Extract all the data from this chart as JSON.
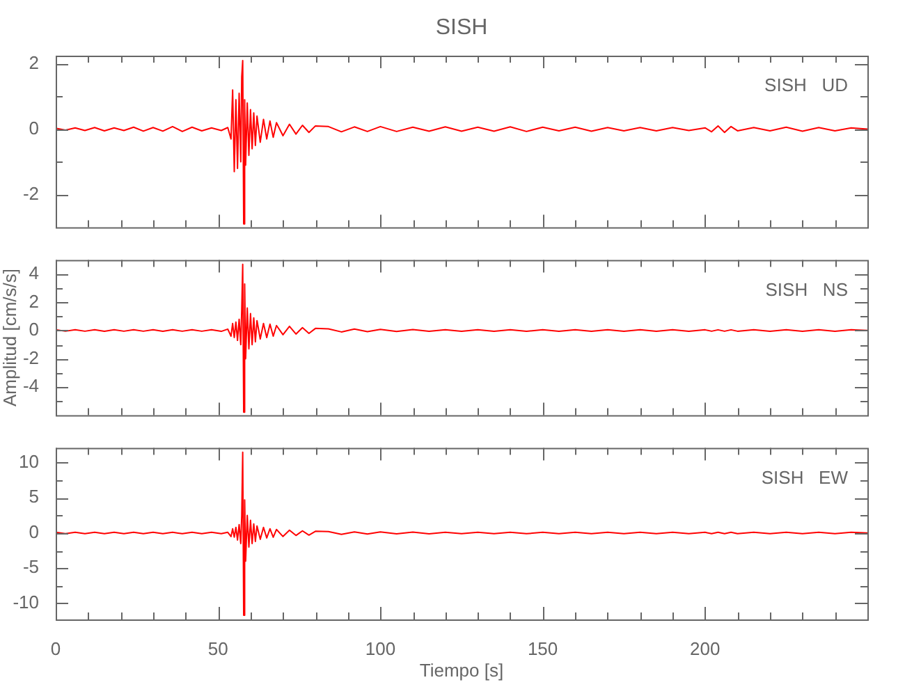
{
  "chart_data": [
    {
      "type": "line",
      "title": "SISH",
      "annotations": [
        "SISH   UD"
      ],
      "color": "#ff0000",
      "tick_labels": "y",
      "x": [
        0,
        3,
        6,
        9,
        12,
        15,
        18,
        21,
        24,
        27,
        30,
        33,
        36,
        39,
        42,
        45,
        48,
        51,
        53,
        54,
        54.5,
        55,
        55.5,
        56,
        56.5,
        57,
        57.3,
        57.6,
        57.9,
        58.2,
        58.5,
        59,
        59.5,
        60,
        60.5,
        61,
        61.5,
        62,
        63,
        64,
        65,
        66,
        67,
        68,
        70,
        72,
        74,
        76,
        78,
        80,
        84,
        88,
        92,
        96,
        100,
        105,
        110,
        115,
        120,
        125,
        130,
        135,
        140,
        145,
        150,
        155,
        160,
        165,
        170,
        175,
        180,
        185,
        190,
        195,
        200,
        202,
        204,
        206,
        208,
        210,
        215,
        220,
        225,
        230,
        235,
        240,
        245,
        250
      ],
      "values": [
        0.03,
        -0.03,
        0.04,
        -0.04,
        0.05,
        -0.05,
        0.04,
        -0.04,
        0.06,
        -0.06,
        0.05,
        -0.06,
        0.08,
        -0.07,
        0.06,
        -0.05,
        0.04,
        -0.04,
        0.05,
        -0.3,
        1.2,
        -1.3,
        0.9,
        -1.2,
        1.1,
        -1.0,
        1.6,
        2.1,
        -2.9,
        0.9,
        -1.1,
        0.8,
        -0.8,
        0.6,
        -0.6,
        0.5,
        -0.5,
        0.4,
        -0.4,
        0.3,
        -0.3,
        0.25,
        -0.25,
        0.2,
        -0.2,
        0.15,
        -0.15,
        0.12,
        -0.1,
        0.1,
        0.08,
        -0.08,
        0.07,
        -0.07,
        0.08,
        -0.07,
        0.06,
        -0.06,
        0.07,
        -0.06,
        0.06,
        -0.06,
        0.07,
        -0.07,
        0.06,
        -0.05,
        0.06,
        -0.06,
        0.05,
        -0.05,
        0.05,
        -0.05,
        0.05,
        -0.04,
        0.04,
        -0.08,
        0.1,
        -0.1,
        0.08,
        -0.05,
        0.05,
        -0.05,
        0.06,
        -0.06,
        0.05,
        -0.05,
        0.04,
        0
      ],
      "xlim": [
        0,
        250
      ],
      "xticks": [
        0,
        {
          "value": 10,
          "label": null
        },
        {
          "value": 20,
          "label": null
        },
        {
          "value": 30,
          "label": null
        },
        {
          "value": 40,
          "label": null
        },
        50,
        {
          "value": 60,
          "label": null
        },
        {
          "value": 70,
          "label": null
        },
        {
          "value": 80,
          "label": null
        },
        {
          "value": 90,
          "label": null
        },
        100,
        {
          "value": 110,
          "label": null
        },
        {
          "value": 120,
          "label": null
        },
        {
          "value": 130,
          "label": null
        },
        {
          "value": 140,
          "label": null
        },
        150,
        {
          "value": 160,
          "label": null
        },
        {
          "value": 170,
          "label": null
        },
        {
          "value": 180,
          "label": null
        },
        {
          "value": 190,
          "label": null
        },
        200,
        {
          "value": 210,
          "label": null
        },
        {
          "value": 220,
          "label": null
        },
        {
          "value": 230,
          "label": null
        },
        {
          "value": 240,
          "label": null
        }
      ],
      "ylim": [
        -3,
        2.25
      ],
      "yticks": [
        2,
        {
          "value": 1,
          "label": null
        },
        0,
        {
          "value": -1,
          "label": null
        },
        -2
      ]
    },
    {
      "type": "line",
      "ylabel": "Amplitud [cm/s/s]",
      "annotations": [
        "SISH   NS"
      ],
      "color": "#ff0000",
      "tick_labels": "y",
      "x": [
        0,
        3,
        6,
        9,
        12,
        15,
        18,
        21,
        24,
        27,
        30,
        33,
        36,
        39,
        42,
        45,
        48,
        51,
        53,
        54,
        54.5,
        55,
        55.5,
        56,
        56.5,
        57,
        57.3,
        57.6,
        57.9,
        58.2,
        58.5,
        59,
        59.5,
        60,
        60.5,
        61,
        61.5,
        62,
        63,
        64,
        65,
        66,
        67,
        68,
        70,
        72,
        74,
        76,
        78,
        80,
        84,
        88,
        92,
        96,
        100,
        105,
        110,
        115,
        120,
        125,
        130,
        135,
        140,
        145,
        150,
        155,
        160,
        165,
        170,
        175,
        180,
        185,
        190,
        195,
        200,
        202,
        204,
        206,
        208,
        210,
        215,
        220,
        225,
        230,
        235,
        240,
        245,
        250
      ],
      "values": [
        0.05,
        -0.05,
        0.06,
        -0.05,
        0.05,
        -0.06,
        0.05,
        -0.05,
        0.06,
        -0.05,
        0.05,
        -0.06,
        0.05,
        -0.05,
        0.06,
        -0.05,
        0.05,
        -0.06,
        0.1,
        -0.4,
        0.5,
        -0.5,
        0.6,
        -0.7,
        0.8,
        -1.0,
        1.5,
        4.7,
        -5.8,
        3.3,
        -2.0,
        1.6,
        -1.3,
        1.2,
        -1.0,
        0.9,
        -0.8,
        0.7,
        -0.6,
        0.5,
        -0.5,
        0.45,
        -0.4,
        0.35,
        -0.3,
        0.3,
        -0.25,
        0.2,
        -0.2,
        0.15,
        0.12,
        -0.1,
        0.1,
        -0.08,
        0.08,
        -0.07,
        0.07,
        -0.06,
        0.06,
        -0.06,
        0.05,
        -0.05,
        0.05,
        -0.05,
        0.05,
        -0.05,
        0.05,
        -0.05,
        0.05,
        -0.05,
        0.05,
        -0.05,
        0.05,
        -0.05,
        0.05,
        -0.05,
        0.05,
        -0.05,
        0.05,
        -0.05,
        0.05,
        -0.05,
        0.05,
        -0.05,
        0.05,
        -0.05,
        0.05,
        0
      ],
      "xlim": [
        0,
        250
      ],
      "xticks": [
        0,
        {
          "value": 10,
          "label": null
        },
        {
          "value": 20,
          "label": null
        },
        {
          "value": 30,
          "label": null
        },
        {
          "value": 40,
          "label": null
        },
        50,
        {
          "value": 60,
          "label": null
        },
        {
          "value": 70,
          "label": null
        },
        {
          "value": 80,
          "label": null
        },
        {
          "value": 90,
          "label": null
        },
        100,
        {
          "value": 110,
          "label": null
        },
        {
          "value": 120,
          "label": null
        },
        {
          "value": 130,
          "label": null
        },
        {
          "value": 140,
          "label": null
        },
        150,
        {
          "value": 160,
          "label": null
        },
        {
          "value": 170,
          "label": null
        },
        {
          "value": 180,
          "label": null
        },
        {
          "value": 190,
          "label": null
        },
        200,
        {
          "value": 210,
          "label": null
        },
        {
          "value": 220,
          "label": null
        },
        {
          "value": 230,
          "label": null
        },
        {
          "value": 240,
          "label": null
        }
      ],
      "ylim": [
        -6,
        5
      ],
      "yticks": [
        4,
        {
          "value": 3,
          "label": null
        },
        2,
        {
          "value": 1,
          "label": null
        },
        0,
        {
          "value": -1,
          "label": null
        },
        -2,
        {
          "value": -3,
          "label": null
        },
        -4,
        {
          "value": -5,
          "label": null
        }
      ]
    },
    {
      "type": "line",
      "xlabel": "Tiempo [s]",
      "annotations": [
        "SISH   EW"
      ],
      "color": "#ff0000",
      "x": [
        0,
        3,
        6,
        9,
        12,
        15,
        18,
        21,
        24,
        27,
        30,
        33,
        36,
        39,
        42,
        45,
        48,
        51,
        53,
        54,
        54.5,
        55,
        55.5,
        56,
        56.5,
        57,
        57.3,
        57.6,
        57.9,
        58.2,
        58.5,
        59,
        59.5,
        60,
        60.5,
        61,
        61.5,
        62,
        63,
        64,
        65,
        66,
        67,
        68,
        70,
        72,
        74,
        76,
        78,
        80,
        84,
        88,
        92,
        96,
        100,
        105,
        110,
        115,
        120,
        125,
        130,
        135,
        140,
        145,
        150,
        155,
        160,
        165,
        170,
        175,
        180,
        185,
        190,
        195,
        200,
        202,
        204,
        206,
        208,
        210,
        215,
        220,
        225,
        230,
        235,
        240,
        245,
        250
      ],
      "values": [
        0.1,
        -0.1,
        0.1,
        -0.1,
        0.1,
        -0.1,
        0.1,
        -0.1,
        0.1,
        -0.1,
        0.1,
        -0.1,
        0.1,
        -0.1,
        0.1,
        -0.1,
        0.1,
        -0.1,
        0.1,
        -0.5,
        0.6,
        -0.6,
        0.8,
        -1.0,
        1.2,
        -1.5,
        2.5,
        11.5,
        -11.7,
        4.7,
        -4.0,
        2.5,
        -2.0,
        1.8,
        -1.5,
        1.3,
        -1.2,
        1.0,
        -0.9,
        0.8,
        -0.7,
        0.6,
        -0.6,
        0.5,
        -0.5,
        0.4,
        -0.35,
        0.3,
        -0.3,
        0.25,
        0.2,
        -0.2,
        0.15,
        -0.15,
        0.15,
        -0.12,
        0.12,
        -0.12,
        0.1,
        -0.1,
        0.1,
        -0.1,
        0.1,
        -0.1,
        0.1,
        -0.1,
        0.1,
        -0.1,
        0.1,
        -0.1,
        0.1,
        -0.1,
        0.1,
        -0.1,
        0.1,
        -0.1,
        0.1,
        -0.1,
        0.1,
        -0.1,
        0.1,
        -0.1,
        0.1,
        -0.1,
        0.1,
        -0.1,
        0.1,
        0
      ],
      "xlim": [
        0,
        250
      ],
      "xticks": [
        0,
        {
          "value": 10,
          "label": null
        },
        {
          "value": 20,
          "label": null
        },
        {
          "value": 30,
          "label": null
        },
        {
          "value": 40,
          "label": null
        },
        50,
        {
          "value": 60,
          "label": null
        },
        {
          "value": 70,
          "label": null
        },
        {
          "value": 80,
          "label": null
        },
        {
          "value": 90,
          "label": null
        },
        100,
        {
          "value": 110,
          "label": null
        },
        {
          "value": 120,
          "label": null
        },
        {
          "value": 130,
          "label": null
        },
        {
          "value": 140,
          "label": null
        },
        150,
        {
          "value": 160,
          "label": null
        },
        {
          "value": 170,
          "label": null
        },
        {
          "value": 180,
          "label": null
        },
        {
          "value": 190,
          "label": null
        },
        200,
        {
          "value": 210,
          "label": null
        },
        {
          "value": 220,
          "label": null
        },
        {
          "value": 230,
          "label": null
        },
        {
          "value": 240,
          "label": null
        }
      ],
      "ylim": [
        -12.3,
        12.1
      ],
      "yticks": [
        10,
        {
          "value": 7.5,
          "label": null
        },
        5,
        {
          "value": 2.5,
          "label": null
        },
        0,
        {
          "value": -2.5,
          "label": null
        },
        -5,
        {
          "value": -7.5,
          "label": null
        },
        -10
      ]
    }
  ]
}
